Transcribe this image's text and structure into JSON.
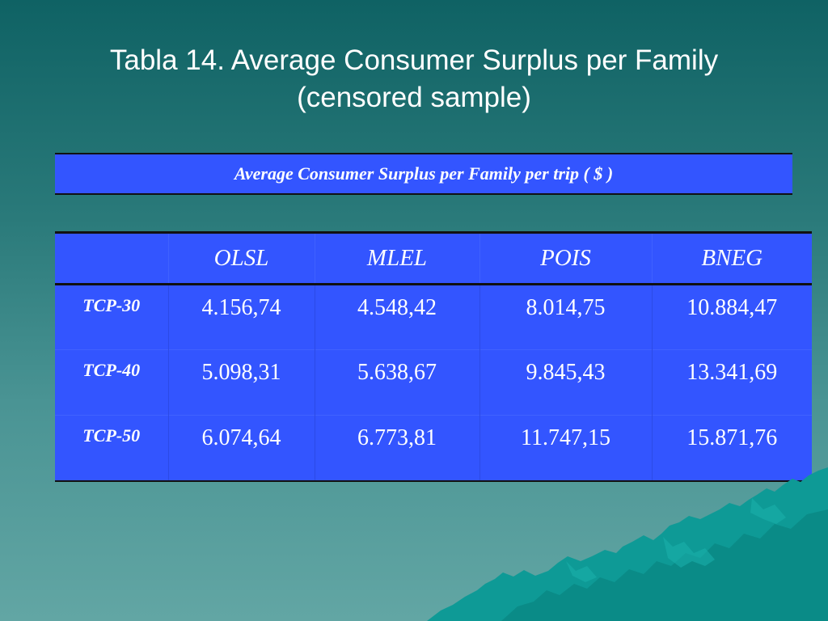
{
  "slide": {
    "title_line1": "Tabla 14. Average Consumer Surplus  per Family",
    "title_line2": "(censored sample)"
  },
  "caption": "Average Consumer Surplus  per Family  per trip ( $ )",
  "table": {
    "headers": [
      "",
      "OLSL",
      "MLEL",
      "POIS",
      "BNEG"
    ],
    "rows": [
      {
        "label": "TCP-30",
        "values": [
          "4.156,74",
          "4.548,42",
          "8.014,75",
          "10.884,47"
        ]
      },
      {
        "label": "TCP-40",
        "values": [
          "5.098,31",
          "5.638,67",
          "9.845,43",
          "13.341,69"
        ]
      },
      {
        "label": "TCP-50",
        "values": [
          "6.074,64",
          "6.773,81",
          "11.747,15",
          "15.871,76"
        ]
      }
    ]
  },
  "colors": {
    "background_top": "#0f6264",
    "background_bottom": "#62a6a4",
    "table_fill": "#3355ff",
    "text": "#ffffff",
    "mountain": "#0e9a96"
  }
}
